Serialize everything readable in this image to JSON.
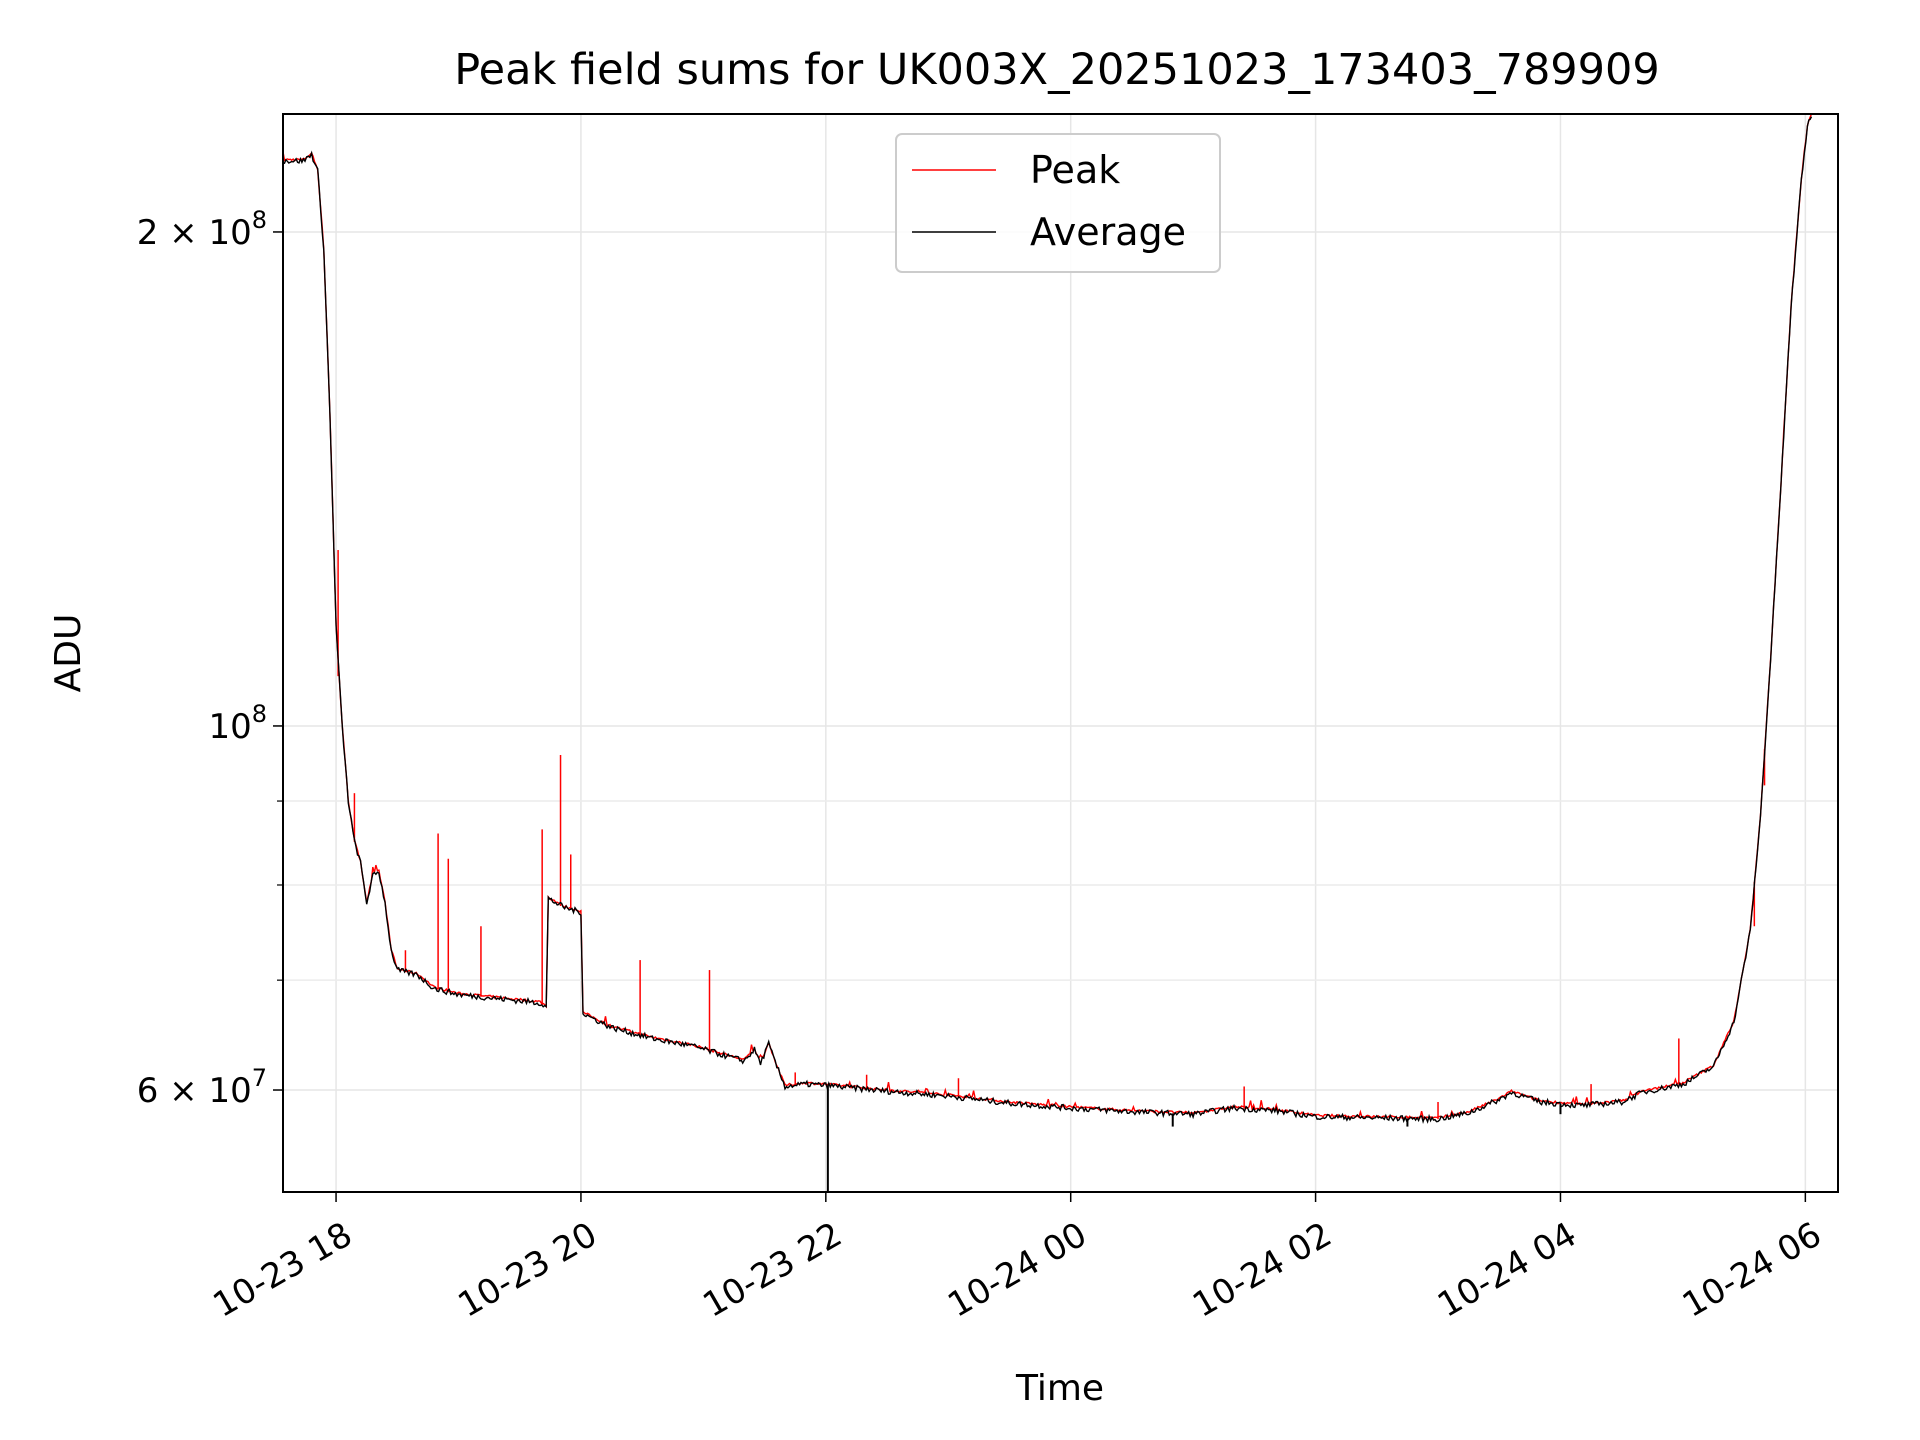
{
  "chart_data": {
    "type": "line",
    "title": "Peak field sums for UK003X_20251023_173403_789909",
    "xlabel": "Time",
    "ylabel": "ADU",
    "yscale": "log",
    "ylim": [
      52000000,
      236000000
    ],
    "xlim": [
      "2025-10-23 17:34",
      "2025-10-24 06:16"
    ],
    "x_ticks": [
      "10-23 18",
      "10-23 20",
      "10-23 22",
      "10-24 00",
      "10-24 02",
      "10-24 04",
      "10-24 06"
    ],
    "y_major_ticks": [
      {
        "value": 60000000,
        "base": "6 × 10",
        "exp": "7"
      },
      {
        "value": 100000000,
        "base": "10",
        "exp": "8"
      },
      {
        "value": 200000000,
        "base": "2 × 10",
        "exp": "8"
      }
    ],
    "grid": true,
    "legend": "upper center",
    "series": [
      {
        "name": "Peak",
        "color": "#ff0000"
      },
      {
        "name": "Average",
        "color": "#000000"
      }
    ],
    "average_points": [
      [
        "2025-10-23 17:34",
        221000000
      ],
      [
        "2025-10-23 17:44",
        221000000
      ],
      [
        "2025-10-23 17:48",
        223000000
      ],
      [
        "2025-10-23 17:51",
        218000000
      ],
      [
        "2025-10-23 17:54",
        195000000
      ],
      [
        "2025-10-23 17:57",
        155000000
      ],
      [
        "2025-10-23 18:00",
        115000000
      ],
      [
        "2025-10-23 18:03",
        100000000
      ],
      [
        "2025-10-23 18:06",
        90000000
      ],
      [
        "2025-10-23 18:09",
        85000000
      ],
      [
        "2025-10-23 18:12",
        82500000
      ],
      [
        "2025-10-23 18:15",
        78000000
      ],
      [
        "2025-10-23 18:18",
        81000000
      ],
      [
        "2025-10-23 18:21",
        81500000
      ],
      [
        "2025-10-23 18:24",
        78000000
      ],
      [
        "2025-10-23 18:27",
        73000000
      ],
      [
        "2025-10-23 18:30",
        71000000
      ],
      [
        "2025-10-23 18:40",
        70500000
      ],
      [
        "2025-10-23 18:48",
        69200000
      ],
      [
        "2025-10-23 19:00",
        68600000
      ],
      [
        "2025-10-23 19:20",
        68200000
      ],
      [
        "2025-10-23 19:40",
        67800000
      ],
      [
        "2025-10-23 19:43",
        67400000
      ],
      [
        "2025-10-23 19:44",
        78500000
      ],
      [
        "2025-10-23 19:52",
        77500000
      ],
      [
        "2025-10-23 20:00",
        77000000
      ],
      [
        "2025-10-23 20:01",
        66800000
      ],
      [
        "2025-10-23 20:15",
        65500000
      ],
      [
        "2025-10-23 20:35",
        64500000
      ],
      [
        "2025-10-23 20:55",
        63800000
      ],
      [
        "2025-10-23 21:10",
        63000000
      ],
      [
        "2025-10-23 21:20",
        62500000
      ],
      [
        "2025-10-23 21:25",
        63500000
      ],
      [
        "2025-10-23 21:28",
        62300000
      ],
      [
        "2025-10-23 21:32",
        64000000
      ],
      [
        "2025-10-23 21:36",
        62000000
      ],
      [
        "2025-10-23 21:40",
        60300000
      ],
      [
        "2025-10-23 21:50",
        60500000
      ],
      [
        "2025-10-23 22:00",
        60400000
      ],
      [
        "2025-10-23 22:30",
        59900000
      ],
      [
        "2025-10-23 23:00",
        59500000
      ],
      [
        "2025-10-23 23:30",
        58900000
      ],
      [
        "2025-10-24 00:00",
        58500000
      ],
      [
        "2025-10-24 00:30",
        58200000
      ],
      [
        "2025-10-24 01:00",
        58000000
      ],
      [
        "2025-10-24 01:20",
        58500000
      ],
      [
        "2025-10-24 01:40",
        58300000
      ],
      [
        "2025-10-24 02:00",
        57800000
      ],
      [
        "2025-10-24 02:30",
        57700000
      ],
      [
        "2025-10-24 03:00",
        57600000
      ],
      [
        "2025-10-24 03:15",
        58100000
      ],
      [
        "2025-10-24 03:30",
        59200000
      ],
      [
        "2025-10-24 03:36",
        59800000
      ],
      [
        "2025-10-24 03:50",
        59000000
      ],
      [
        "2025-10-24 04:10",
        58700000
      ],
      [
        "2025-10-24 04:30",
        59000000
      ],
      [
        "2025-10-24 04:40",
        59800000
      ],
      [
        "2025-10-24 05:00",
        60500000
      ],
      [
        "2025-10-24 05:15",
        62000000
      ],
      [
        "2025-10-24 05:25",
        66000000
      ],
      [
        "2025-10-24 05:33",
        75000000
      ],
      [
        "2025-10-24 05:38",
        88000000
      ],
      [
        "2025-10-24 05:43",
        110000000
      ],
      [
        "2025-10-24 05:48",
        140000000
      ],
      [
        "2025-10-24 05:53",
        180000000
      ],
      [
        "2025-10-24 05:58",
        215000000
      ],
      [
        "2025-10-24 06:01",
        232000000
      ],
      [
        "2025-10-24 06:03",
        236000000
      ]
    ],
    "peak_spikes": [
      [
        "2025-10-23 18:01",
        128000000
      ],
      [
        "2025-10-23 18:09",
        91000000
      ],
      [
        "2025-10-23 18:34",
        73000000
      ],
      [
        "2025-10-23 18:50",
        86000000
      ],
      [
        "2025-10-23 18:55",
        83000000
      ],
      [
        "2025-10-23 19:11",
        75500000
      ],
      [
        "2025-10-23 19:41",
        86500000
      ],
      [
        "2025-10-23 19:50",
        96000000
      ],
      [
        "2025-10-23 19:55",
        83500000
      ],
      [
        "2025-10-23 20:29",
        72000000
      ],
      [
        "2025-10-23 21:03",
        71000000
      ],
      [
        "2025-10-23 21:45",
        61500000
      ],
      [
        "2025-10-23 22:20",
        61300000
      ],
      [
        "2025-10-23 23:05",
        61000000
      ],
      [
        "2025-10-24 01:25",
        60300000
      ],
      [
        "2025-10-24 03:00",
        59000000
      ],
      [
        "2025-10-24 04:15",
        60500000
      ],
      [
        "2025-10-24 04:58",
        64500000
      ],
      [
        "2025-10-24 05:35",
        75500000
      ],
      [
        "2025-10-24 05:40",
        92000000
      ]
    ],
    "average_dips": [
      [
        "2025-10-23 22:01",
        52000000
      ],
      [
        "2025-10-24 00:50",
        57000000
      ],
      [
        "2025-10-24 02:45",
        57000000
      ],
      [
        "2025-10-24 04:00",
        58000000
      ]
    ]
  }
}
